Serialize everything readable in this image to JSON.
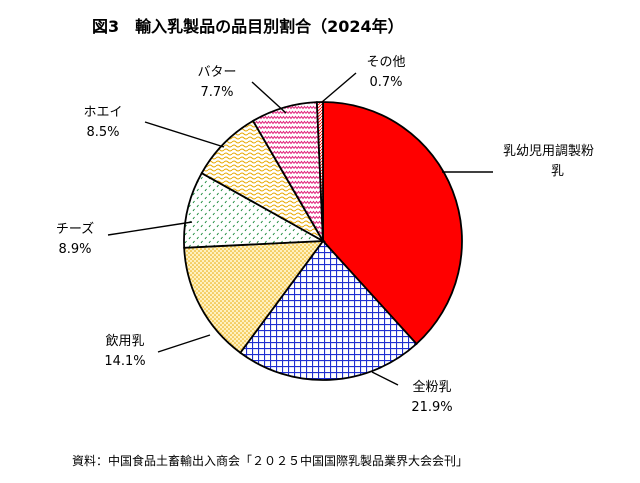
{
  "chart_data": {
    "type": "pie",
    "title": "図3　輸入乳製品の品目別割合（2024年）",
    "slices": [
      {
        "label": "乳幼児用調製粉乳",
        "value": 38.3,
        "color": "#ff0000",
        "pattern": "solid"
      },
      {
        "label": "全粉乳",
        "value": 21.9,
        "value_text": "21.9%",
        "color": "#1f2fd0",
        "pattern": "grid"
      },
      {
        "label": "飲用乳",
        "value": 14.1,
        "value_text": "14.1%",
        "color": "#e8a800",
        "pattern": "dots"
      },
      {
        "label": "チーズ",
        "value": 8.9,
        "value_text": "8.9%",
        "color": "#1a8a3a",
        "pattern": "ticks"
      },
      {
        "label": "ホエイ",
        "value": 8.5,
        "value_text": "8.5%",
        "color": "#e8a800",
        "pattern": "waves"
      },
      {
        "label": "バター",
        "value": 7.7,
        "value_text": "7.7%",
        "color": "#e0207a",
        "pattern": "zigzag"
      },
      {
        "label": "その他",
        "value": 0.7,
        "value_text": "0.7%",
        "color": "#ff0000",
        "pattern": "hatch"
      }
    ],
    "source": "資料：中国食品土畜輸出入商会「２０２５中国国際乳製品業界大会会刊」"
  }
}
